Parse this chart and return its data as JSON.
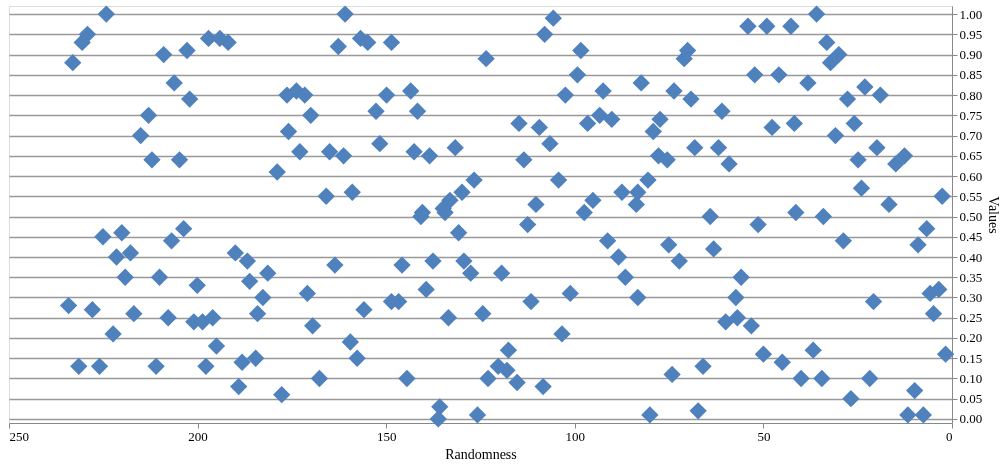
{
  "chart_data": {
    "type": "scatter",
    "xlabel": "Randomness",
    "ylabel": "Values",
    "xlim": [
      250,
      0
    ],
    "xticks": [
      250,
      200,
      150,
      100,
      50,
      0
    ],
    "ylim": [
      -0.01,
      1.02
    ],
    "yticks": [
      {
        "value": 0,
        "label": "0.00"
      },
      {
        "value": 0.05,
        "label": "0.05"
      },
      {
        "value": 0.1,
        "label": "0.10"
      },
      {
        "value": 0.15,
        "label": "0.15"
      },
      {
        "value": 0.2,
        "label": "0.20"
      },
      {
        "value": 0.25,
        "label": "0.25"
      },
      {
        "value": 0.3,
        "label": "0.30"
      },
      {
        "value": 0.35,
        "label": "0.35"
      },
      {
        "value": 0.4,
        "label": "0.40"
      },
      {
        "value": 0.45,
        "label": "0.45"
      },
      {
        "value": 0.5,
        "label": "0.50"
      },
      {
        "value": 0.55,
        "label": "0.55"
      },
      {
        "value": 0.6,
        "label": "0.60"
      },
      {
        "value": 0.65,
        "label": "0.65"
      },
      {
        "value": 0.7,
        "label": "0.70"
      },
      {
        "value": 0.75,
        "label": "0.75"
      },
      {
        "value": 0.8,
        "label": "0.80"
      },
      {
        "value": 0.85,
        "label": "0.85"
      },
      {
        "value": 0.9,
        "label": "0.90"
      },
      {
        "value": 0.95,
        "label": "0.95"
      },
      {
        "value": 1,
        "label": "1.00"
      }
    ],
    "grid": "y",
    "marker": "diamond",
    "series": [
      {
        "color": "#4f81bd",
        "x": [
          224.2,
          229.2,
          230.6,
          233.1,
          209.0,
          202.8,
          197.1,
          194.1,
          191.9,
          206.2,
          202.1,
          213.0,
          215.1,
          212.1,
          204.8,
          176.3,
          173.8,
          171.6,
          170.0,
          175.9,
          172.9,
          178.9,
          160.9,
          105.7,
          108.0,
          162.7,
          156.8,
          154.9,
          148.6,
          123.5,
          98.4,
          99.3,
          102.5,
          92.5,
          149.9,
          143.5,
          152.7,
          141.7,
          114.8,
          109.4,
          106.6,
          96.6,
          93.4,
          90.2,
          151.7,
          165.0,
          161.3,
          142.6,
          138.5,
          131.7,
          113.5,
          165.9,
          159.0,
          126.7,
          129.9,
          133.1,
          140.4,
          134.9,
          104.3,
          110.3,
          95.2,
          97.5,
          87.5,
          80.6,
          83.3,
          83.7,
          54.1,
          49.1,
          42.7,
          35.9,
          70.1,
          71.0,
          33.2,
          30.0,
          32.2,
          52.3,
          45.9,
          38.2,
          82.4,
          73.7,
          69.2,
          61.0,
          27.7,
          23.1,
          19.0,
          77.4,
          79.2,
          47.7,
          41.8,
          30.9,
          25.9,
          77.8,
          75.5,
          68.2,
          61.9,
          59.1,
          24.9,
          19.9,
          14.9,
          12.6,
          24.0,
          16.7,
          2.6,
          225.1,
          220.1,
          221.5,
          217.8,
          206.9,
          203.7,
          190.0,
          186.8,
          186.2,
          181.4,
          219.2,
          210.1,
          200.1,
          182.7,
          184.1,
          170.9,
          234.2,
          227.9,
          216.9,
          207.8,
          201.0,
          198.7,
          196.0,
          222.4,
          195.0,
          169.5,
          231.5,
          226.0,
          211.0,
          197.8,
          188.2,
          184.6,
          189.1,
          177.7,
          167.7,
          140.8,
          134.4,
          112.5,
          130.8,
          91.3,
          88.4,
          86.6,
          83.3,
          163.6,
          145.8,
          137.6,
          129.4,
          127.6,
          119.4,
          139.4,
          146.7,
          148.6,
          155.9,
          133.5,
          124.4,
          111.6,
          101.2,
          159.5,
          157.7,
          103.4,
          117.6,
          120.3,
          123.0,
          118.0,
          115.3,
          108.4,
          144.5,
          135.8,
          136.2,
          125.8,
          64.1,
          41.4,
          34.1,
          51.4,
          6.7,
          9.0,
          28.8,
          75.1,
          72.3,
          63.2,
          55.9,
          57.3,
          60.0,
          56.9,
          53.2,
          20.8,
          5.8,
          3.5,
          4.9,
          50.0,
          45.0,
          36.8,
          74.2,
          66.0,
          40.0,
          34.5,
          21.8,
          1.7,
          26.8,
          9.9,
          80.1,
          67.3,
          11.7,
          7.6
        ],
        "values": [
          1.0,
          0.95,
          0.93,
          0.88,
          0.9,
          0.91,
          0.94,
          0.94,
          0.93,
          0.83,
          0.79,
          0.75,
          0.7,
          0.64,
          0.64,
          0.8,
          0.81,
          0.8,
          0.75,
          0.71,
          0.66,
          0.61,
          1.0,
          0.99,
          0.95,
          0.92,
          0.94,
          0.93,
          0.93,
          0.89,
          0.91,
          0.85,
          0.8,
          0.81,
          0.8,
          0.81,
          0.76,
          0.76,
          0.73,
          0.72,
          0.68,
          0.73,
          0.75,
          0.74,
          0.68,
          0.66,
          0.65,
          0.66,
          0.65,
          0.67,
          0.64,
          0.55,
          0.56,
          0.59,
          0.56,
          0.54,
          0.51,
          0.52,
          0.59,
          0.53,
          0.54,
          0.51,
          0.56,
          0.59,
          0.56,
          0.53,
          0.97,
          0.97,
          0.97,
          1.0,
          0.91,
          0.89,
          0.93,
          0.9,
          0.88,
          0.85,
          0.85,
          0.83,
          0.83,
          0.81,
          0.79,
          0.76,
          0.79,
          0.82,
          0.8,
          0.74,
          0.71,
          0.72,
          0.73,
          0.7,
          0.73,
          0.65,
          0.64,
          0.67,
          0.67,
          0.63,
          0.64,
          0.67,
          0.63,
          0.65,
          0.57,
          0.53,
          0.55,
          0.45,
          0.46,
          0.4,
          0.41,
          0.44,
          0.47,
          0.41,
          0.39,
          0.34,
          0.36,
          0.35,
          0.35,
          0.33,
          0.3,
          0.26,
          0.31,
          0.28,
          0.27,
          0.26,
          0.25,
          0.24,
          0.24,
          0.25,
          0.21,
          0.18,
          0.23,
          0.13,
          0.13,
          0.13,
          0.13,
          0.14,
          0.15,
          0.08,
          0.06,
          0.1,
          0.5,
          0.51,
          0.48,
          0.46,
          0.44,
          0.4,
          0.35,
          0.3,
          0.38,
          0.38,
          0.39,
          0.39,
          0.36,
          0.36,
          0.32,
          0.29,
          0.29,
          0.27,
          0.25,
          0.26,
          0.29,
          0.31,
          0.19,
          0.15,
          0.21,
          0.17,
          0.13,
          0.1,
          0.12,
          0.09,
          0.08,
          0.1,
          0.03,
          0.0,
          0.01,
          0.5,
          0.51,
          0.5,
          0.48,
          0.47,
          0.43,
          0.44,
          0.43,
          0.39,
          0.42,
          0.35,
          0.3,
          0.24,
          0.25,
          0.23,
          0.29,
          0.31,
          0.32,
          0.26,
          0.16,
          0.14,
          0.17,
          0.11,
          0.13,
          0.1,
          0.1,
          0.1,
          0.16,
          0.05,
          0.07,
          0.01,
          0.02,
          0.01,
          0.01
        ]
      }
    ]
  }
}
